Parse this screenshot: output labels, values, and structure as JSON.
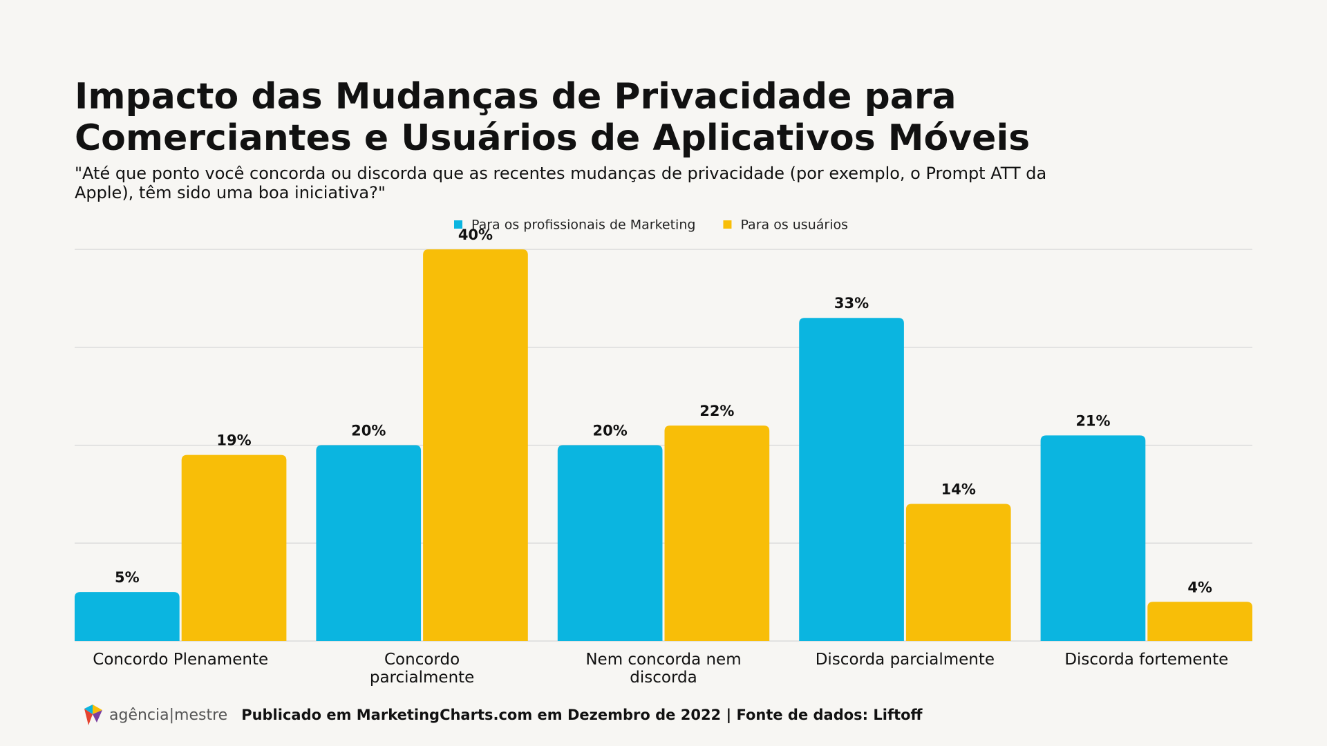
{
  "chart_data": {
    "type": "bar",
    "title": "Impacto das Mudanças de Privacidade para Comerciantes e Usuários de Aplicativos Móveis",
    "subtitle": "\"Até que ponto você concorda ou discorda que as recentes mudanças de privacidade (por exemplo, o Prompt ATT da Apple), têm sido uma boa iniciativa?\"",
    "categories": [
      "Concordo Plenamente",
      "Concordo parcialmente",
      "Nem concorda nem discorda",
      "Discorda parcialmente",
      "Discorda fortemente"
    ],
    "series": [
      {
        "name": "Para os profissionais de Marketing",
        "color": "#0bb5e0",
        "values": [
          5,
          20,
          20,
          33,
          21
        ],
        "value_labels": [
          "5%",
          "20%",
          "20%",
          "33%",
          "21%"
        ]
      },
      {
        "name": "Para os usuários",
        "color": "#f8be08",
        "values": [
          19,
          40,
          22,
          14,
          4
        ],
        "value_labels": [
          "19%",
          "40%",
          "22%",
          "14%",
          "4%"
        ]
      }
    ],
    "ylim": [
      0,
      40
    ],
    "yticks": [
      0,
      10,
      20,
      30,
      40
    ],
    "grid": true,
    "legend": "top"
  },
  "footer": {
    "logo": "agência|mestre",
    "source": "Publicado em MarketingCharts.com em Dezembro de 2022 | Fonte de dados: Liftoff"
  }
}
